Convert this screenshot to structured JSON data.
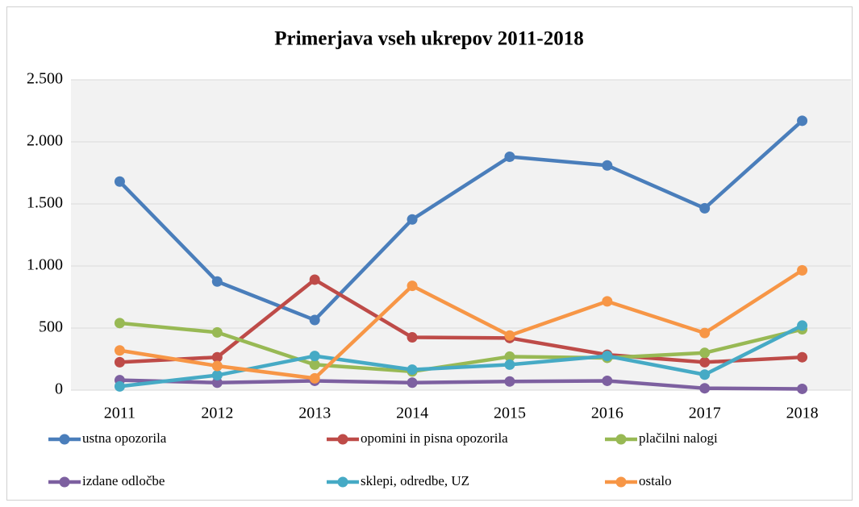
{
  "chart_data": {
    "type": "line",
    "title": "Primerjava vseh ukrepov 2011-2018",
    "categories": [
      "2011",
      "2012",
      "2013",
      "2014",
      "2015",
      "2016",
      "2017",
      "2018"
    ],
    "series": [
      {
        "name": "ustna opozorila",
        "color": "#4a7ebb",
        "values": [
          1680,
          875,
          565,
          1375,
          1880,
          1810,
          1465,
          2170
        ]
      },
      {
        "name": "opomini in pisna opozorila",
        "color": "#be4b48",
        "values": [
          225,
          265,
          890,
          425,
          420,
          285,
          225,
          265
        ]
      },
      {
        "name": "plačilni nalogi",
        "color": "#98b954",
        "values": [
          540,
          465,
          205,
          150,
          270,
          260,
          300,
          490
        ]
      },
      {
        "name": "izdane odločbe",
        "color": "#7d60a0",
        "values": [
          80,
          60,
          75,
          60,
          70,
          75,
          15,
          10
        ]
      },
      {
        "name": "sklepi, odredbe, UZ",
        "color": "#46aac5",
        "values": [
          30,
          120,
          275,
          165,
          205,
          275,
          125,
          520
        ]
      },
      {
        "name": "ostalo",
        "color": "#f79646",
        "values": [
          320,
          195,
          95,
          840,
          440,
          715,
          460,
          965
        ]
      }
    ],
    "ylim": [
      0,
      2500
    ],
    "yticks": [
      0,
      500,
      {
        "value": 1000,
        "label": "1.000"
      },
      {
        "value": 1500,
        "label": "1.500"
      },
      {
        "value": 2000,
        "label": "2.000"
      },
      {
        "value": 2500,
        "label": "2.500"
      }
    ],
    "grid": true,
    "legend": "bottom"
  }
}
